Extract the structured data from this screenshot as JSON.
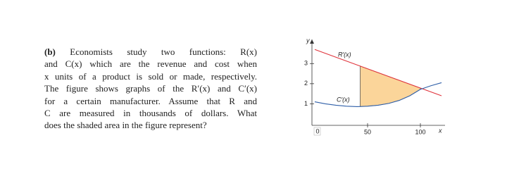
{
  "problem": {
    "label": "(b)",
    "lines": [
      "Economists study two functions: R(x)",
      "and C(x) which are the revenue and cost when",
      "x units of a product is sold or made, respectively.",
      "The figure shows graphs of the R′(x) and C′(x)",
      "for a certain manufacturer. Assume that R and",
      "C are measured in thousands of dollars. What",
      "does the shaded area in the figure represent?"
    ]
  },
  "figure": {
    "type": "line",
    "x_label": "x",
    "y_label": "y",
    "origin_label": "0",
    "xlim": [
      0,
      122
    ],
    "ylim": [
      0,
      4.2
    ],
    "xticks": [
      50,
      100
    ],
    "yticks": [
      1,
      2,
      3
    ],
    "series": [
      {
        "name": "R′(x)",
        "color": "#e0343c",
        "x": [
          0,
          120
        ],
        "values": [
          3.7,
          1.4
        ]
      },
      {
        "name": "C′(x)",
        "color": "#2f5fa8",
        "x": [
          0,
          10,
          20,
          30,
          40,
          50,
          60,
          70,
          80,
          90,
          100,
          110,
          120
        ],
        "values": [
          1.1,
          1.0,
          0.93,
          0.88,
          0.86,
          0.88,
          0.93,
          1.02,
          1.17,
          1.4,
          1.72,
          1.9,
          2.05
        ]
      }
    ],
    "shade": {
      "color": "#fbd59a",
      "from": 43,
      "to": 100
    }
  }
}
